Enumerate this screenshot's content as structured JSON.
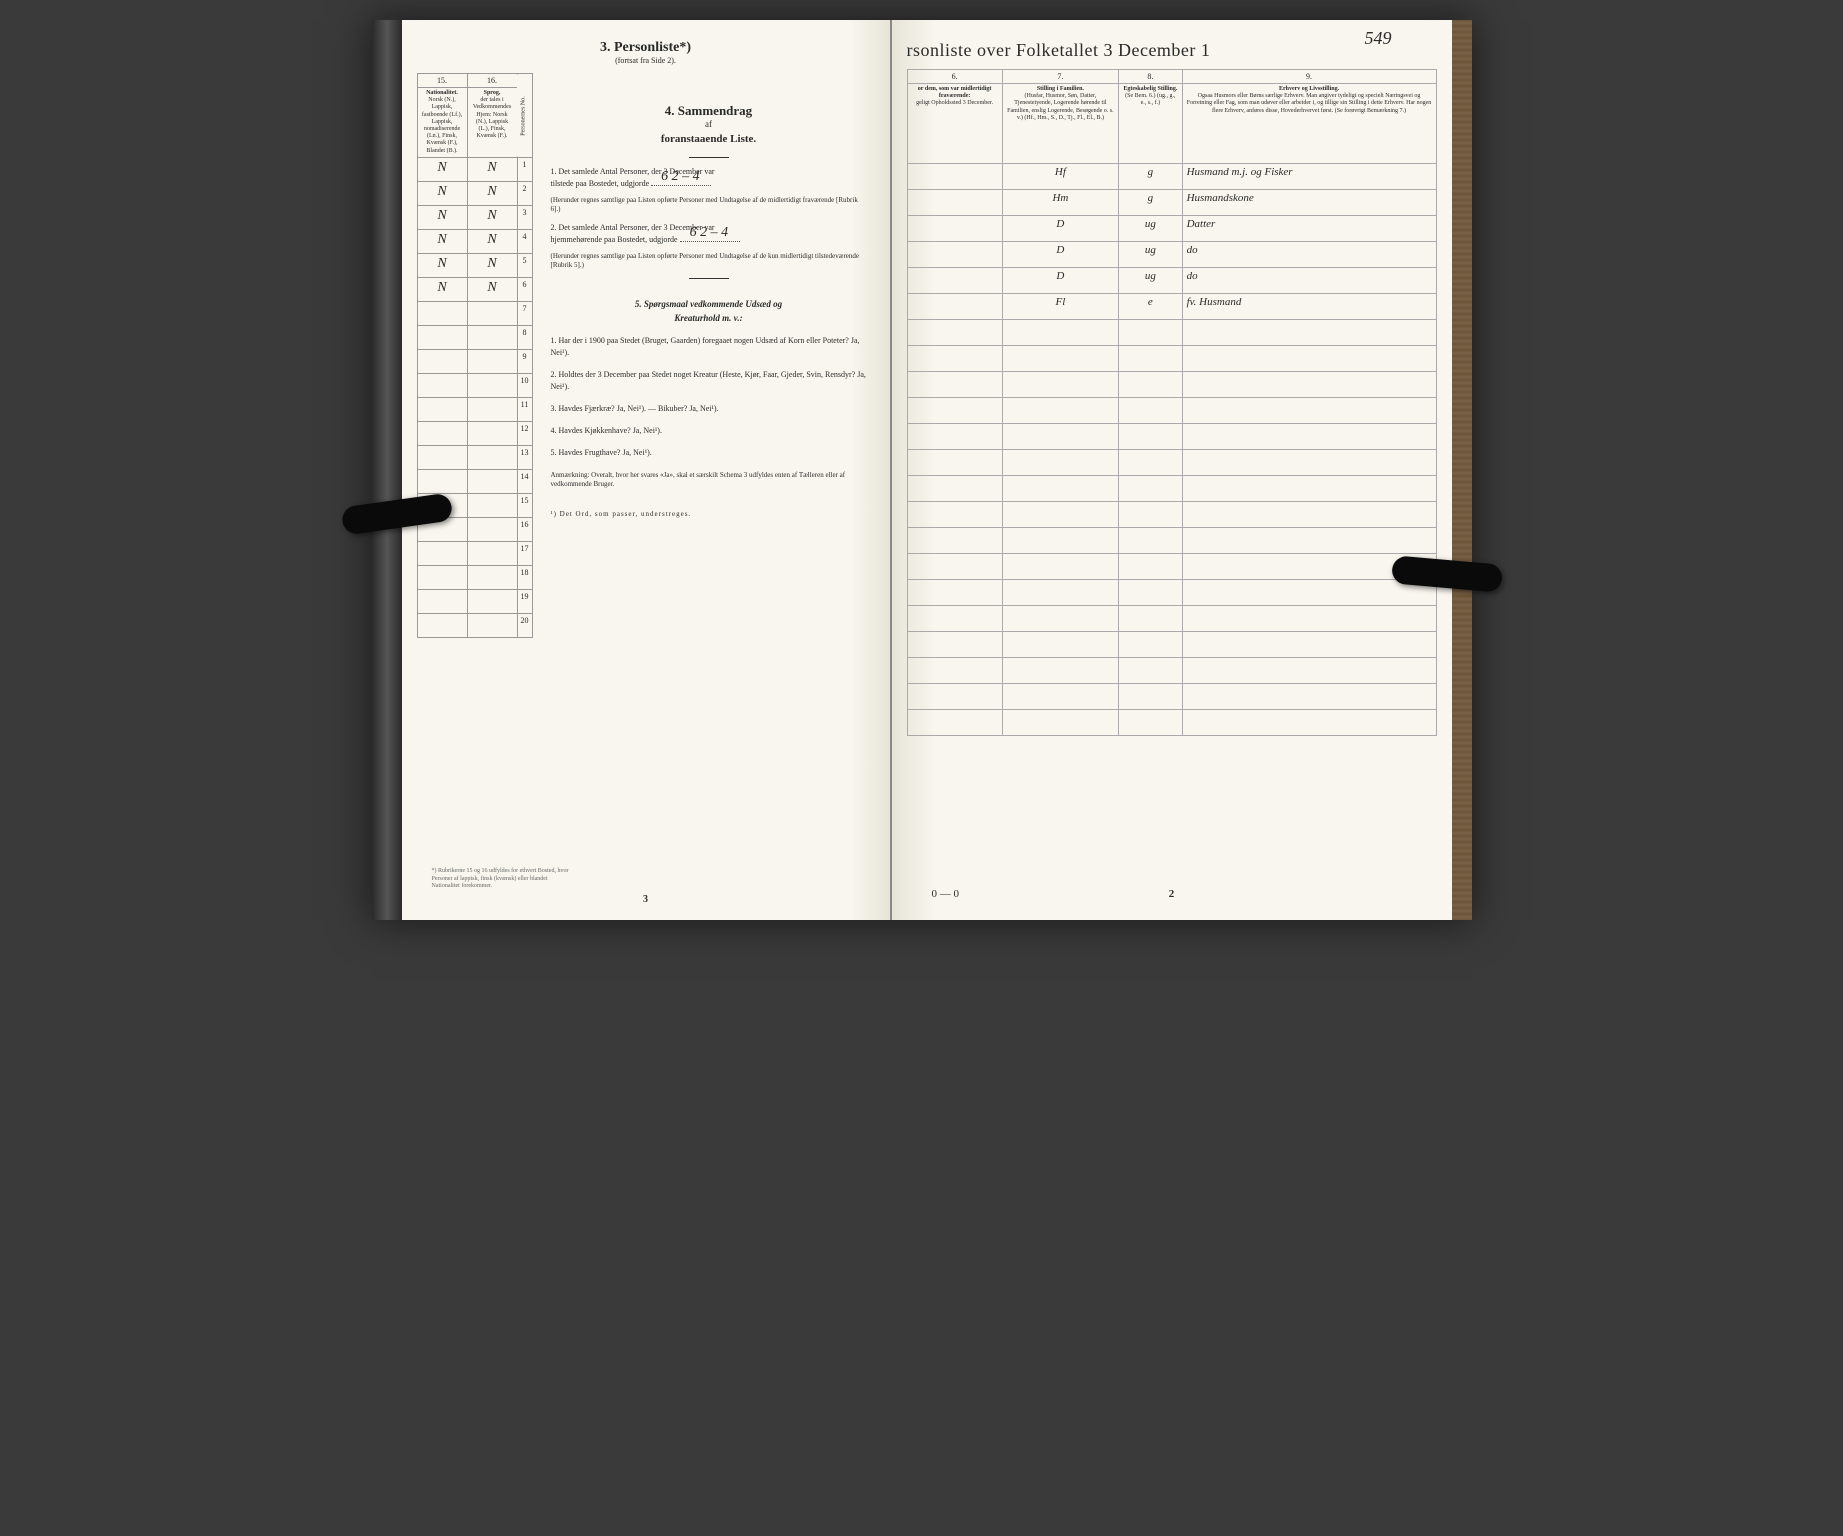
{
  "handwritten_page_number": "549",
  "left_page": {
    "section_number": "3.",
    "section_title": "Personliste*)",
    "section_subtitle": "(fortsat fra Side 2).",
    "columns": {
      "col15": {
        "num": "15.",
        "title": "Nationalitet.",
        "desc": "Norsk (N.), Lappisk, fastboende (Lf.), Lappisk, nomadiserende (Ln.), Finsk, Kvænsk (F.), Blandet (B.)."
      },
      "col16": {
        "num": "16.",
        "title": "Sprog,",
        "desc": "der tales i Vedkommendes Hjem: Norsk (N.), Lappisk (L.), Finsk, Kvænsk (F.)."
      },
      "rownum": "Personernes No."
    },
    "rows": [
      {
        "n": "1",
        "c15": "N",
        "c16": "N"
      },
      {
        "n": "2",
        "c15": "N",
        "c16": "N"
      },
      {
        "n": "3",
        "c15": "N",
        "c16": "N"
      },
      {
        "n": "4",
        "c15": "N",
        "c16": "N"
      },
      {
        "n": "5",
        "c15": "N",
        "c16": "N"
      },
      {
        "n": "6",
        "c15": "N",
        "c16": "N"
      },
      {
        "n": "7",
        "c15": "",
        "c16": ""
      },
      {
        "n": "8",
        "c15": "",
        "c16": ""
      },
      {
        "n": "9",
        "c15": "",
        "c16": ""
      },
      {
        "n": "10",
        "c15": "",
        "c16": ""
      },
      {
        "n": "11",
        "c15": "",
        "c16": ""
      },
      {
        "n": "12",
        "c15": "",
        "c16": ""
      },
      {
        "n": "13",
        "c15": "",
        "c16": ""
      },
      {
        "n": "14",
        "c15": "",
        "c16": ""
      },
      {
        "n": "15",
        "c15": "",
        "c16": ""
      },
      {
        "n": "16",
        "c15": "",
        "c16": ""
      },
      {
        "n": "17",
        "c15": "",
        "c16": ""
      },
      {
        "n": "18",
        "c15": "",
        "c16": ""
      },
      {
        "n": "19",
        "c15": "",
        "c16": ""
      },
      {
        "n": "20",
        "c15": "",
        "c16": ""
      }
    ],
    "sammendrag": {
      "num": "4.",
      "title": "Sammendrag",
      "sub1": "af",
      "sub2": "foranstaaende Liste.",
      "item1": "1. Det samlede Antal Personer, der 3 December var",
      "item1b": "tilstede paa Bostedet, udgjorde",
      "item1_value": "6 2 – 4",
      "item1_paren": "(Herunder regnes samtlige paa Listen opførte Personer med Undtagelse af de midlertidigt fraværende [Rubrik 6].)",
      "item2": "2. Det samlede Antal Personer, der 3 December var",
      "item2b": "hjemmehørende paa Bostedet, udgjorde",
      "item2_value": "6 2 – 4",
      "item2_paren": "(Herunder regnes samtlige paa Listen opførte Personer med Undtagelse af de kun midlertidigt tilstedeværende [Rubrik 5].)"
    },
    "section5": {
      "num": "5.",
      "title": "Spørgsmaal vedkommende Udsæd og",
      "sub": "Kreaturhold m. v.:",
      "q1": "1. Har der i 1900 paa Stedet (Bruget, Gaarden) foregaaet nogen Udsæd af Korn eller Poteter? Ja, Nei¹).",
      "q2": "2. Holdtes der 3 December paa Stedet noget Kreatur (Heste, Kjør, Faar, Gjeder, Svin, Rensdyr? Ja, Nei¹).",
      "q3": "3. Havdes Fjærkræ? Ja, Nei¹). — Bikuber? Ja, Nei¹).",
      "q4": "4. Havdes Kjøkkenhave? Ja, Nei¹).",
      "q5": "5. Havdes Frugthave? Ja, Nei¹).",
      "anm": "Anmærkning: Overalt, hvor her svares «Ja», skal et særskilt Schema 3 udfyldes enten af Tælleren eller af vedkommende Bruger."
    },
    "footnote_asterisk": "*) Rubrikerne 15 og 16 udfyldes for ethvert Bosted, hvor Personer af lappisk, finsk (kvænsk) eller blandet Nationalitet forekommer.",
    "footnote_1": "¹) Det Ord, som passer, understreges.",
    "foot_page_num": "3"
  },
  "right_page": {
    "title": "rsonliste over Folketallet 3 December 1",
    "columns": {
      "c6": {
        "num": "6.",
        "title": "or dem, som var midlertidigt fraværende:",
        "desc": "geligt Opholdssted 3 December."
      },
      "c7": {
        "num": "7.",
        "title": "Stilling i Familien.",
        "desc": "(Husfar, Husmor, Søn, Datter, Tjenestetyende, Logerende hørende til Familien, enslig Logerende, Besøgende o. s. v.) (Hf., Hm., S., D., Tj., Fl., El., B.)"
      },
      "c8": {
        "num": "8.",
        "title": "Egteskabelig Stilling.",
        "desc": "(Se Bem. 6.) (ug., g., e., s., f.)"
      },
      "c9": {
        "num": "9.",
        "title": "Erhverv og Livsstilling.",
        "desc": "Ogsaa Husmors eller Børns særlige Erhverv. Man angiver tydeligt og specielt Næringsvei og Forretning eller Fag, som man udøver eller arbeider i, og tillige sin Stilling i dette Erhverv. Har nogen flere Erhverv, anføres disse, Hovederhvervet først. (Se forøvrigt Bemærkning 7.)"
      }
    },
    "rows": [
      {
        "c6": "",
        "c7": "Hf",
        "c8": "g",
        "c9": "Husmand m.j. og Fisker"
      },
      {
        "c6": "",
        "c7": "Hm",
        "c8": "g",
        "c9": "Husmandskone"
      },
      {
        "c6": "",
        "c7": "D",
        "c8": "ug",
        "c9": "Datter"
      },
      {
        "c6": "",
        "c7": "D",
        "c8": "ug",
        "c9": "do"
      },
      {
        "c6": "",
        "c7": "D",
        "c8": "ug",
        "c9": "do"
      },
      {
        "c6": "",
        "c7": "Fl",
        "c8": "e",
        "c9": "fv. Husmand"
      }
    ],
    "foot_left": "0 — 0",
    "foot_page_num": "2"
  },
  "colors": {
    "paper": "#f8f6ee",
    "ink": "#2a2a2a",
    "rule": "#999999",
    "handwriting": "#3a3a3a",
    "background": "#3a3a3a",
    "clip": "#0a0a0a",
    "wood": "#6b5438"
  }
}
